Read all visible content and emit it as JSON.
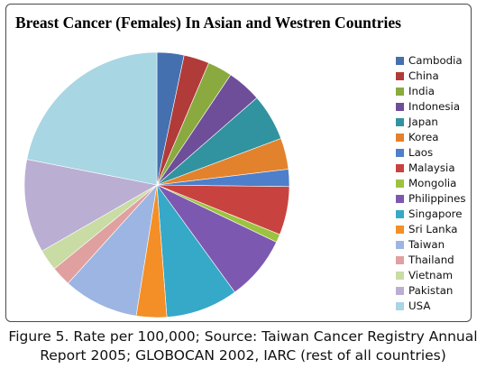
{
  "chart_data": {
    "type": "pie",
    "title": "Breast Cancer (Females) In Asian and Westren Countries",
    "legend_position": "right",
    "slices": [
      {
        "name": "Cambodia",
        "value": 3.3,
        "color": "#4470b0"
      },
      {
        "name": "China",
        "value": 3.1,
        "color": "#b03b38"
      },
      {
        "name": "India",
        "value": 3.0,
        "color": "#8aaa3f"
      },
      {
        "name": "Indonesia",
        "value": 4.2,
        "color": "#6e4e98"
      },
      {
        "name": "Japan",
        "value": 5.7,
        "color": "#31939f"
      },
      {
        "name": "Korea",
        "value": 3.8,
        "color": "#e3822c"
      },
      {
        "name": "Laos",
        "value": 2.1,
        "color": "#4d7fca"
      },
      {
        "name": "Malaysia",
        "value": 5.9,
        "color": "#c8433f"
      },
      {
        "name": "Mongolia",
        "value": 1.0,
        "color": "#9cc33f"
      },
      {
        "name": "Philippines",
        "value": 7.9,
        "color": "#7d58b0"
      },
      {
        "name": "Singapore",
        "value": 8.8,
        "color": "#36a8c8"
      },
      {
        "name": "Sri Lanka",
        "value": 3.7,
        "color": "#f38f26"
      },
      {
        "name": "Taiwan",
        "value": 9.2,
        "color": "#9cb5e2"
      },
      {
        "name": "Thailand",
        "value": 2.4,
        "color": "#e0a0a0"
      },
      {
        "name": "Vietnam",
        "value": 2.6,
        "color": "#c8dca4"
      },
      {
        "name": "Pakistan",
        "value": 11.4,
        "color": "#bbaed3"
      },
      {
        "name": "USA",
        "value": 21.9,
        "color": "#a8d6e2"
      }
    ]
  },
  "caption": {
    "line1": "Figure 5. Rate per 100,000; Source: Taiwan Cancer Registry Annual",
    "line2": "Report 2005; GLOBOCAN 2002, IARC (rest of all countries)"
  }
}
